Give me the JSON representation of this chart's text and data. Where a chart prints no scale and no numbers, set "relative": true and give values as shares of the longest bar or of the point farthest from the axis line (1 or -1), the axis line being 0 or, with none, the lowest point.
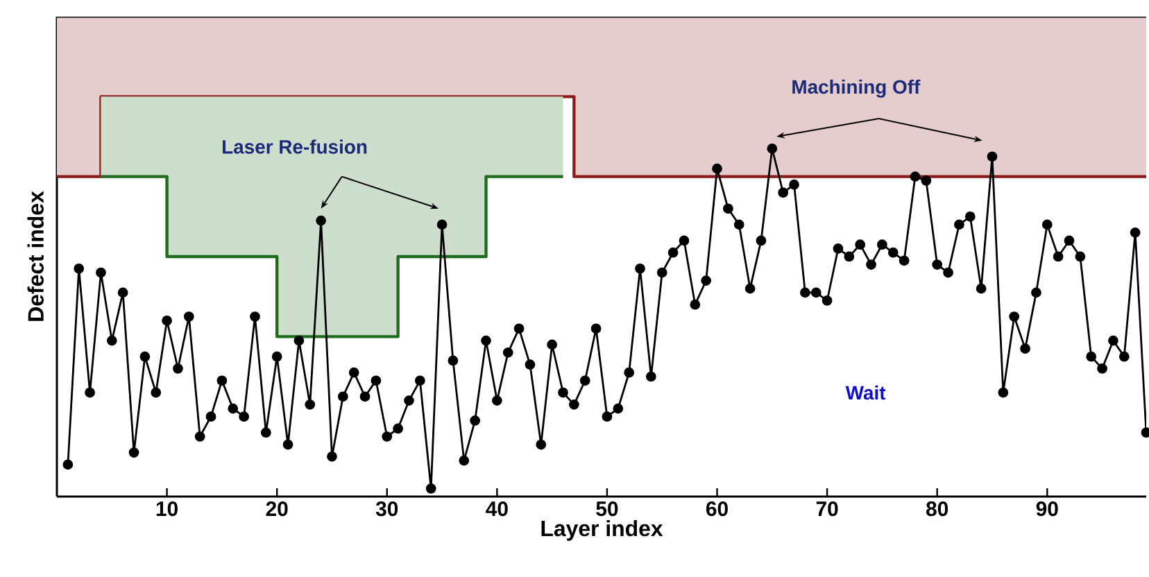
{
  "chart_data": {
    "type": "line",
    "relative": true,
    "xlabel": "Layer index",
    "ylabel": "Defect index",
    "xlim": [
      0,
      99
    ],
    "xticks": [
      10,
      20,
      30,
      40,
      50,
      60,
      70,
      80,
      90
    ],
    "annotations": [
      "Laser Re-fusion",
      "Machining Off",
      "Wait"
    ],
    "series": [
      {
        "type": "step",
        "color": "#8b1a1a",
        "x": [
          0,
          4,
          47,
          99
        ],
        "values": [
          0.8,
          1.0,
          0.8,
          0.8
        ],
        "lower": [
          0.8,
          1.0,
          0.8,
          0.8
        ],
        "upper": [
          1.2,
          1.2,
          1.2,
          1.2
        ]
      },
      {
        "type": "step",
        "color": "#1e6b1e",
        "x": [
          4,
          10,
          20,
          31,
          39,
          46
        ],
        "values": [
          0.8,
          0.6,
          0.4,
          0.6,
          0.8,
          0.8
        ],
        "lower": [
          0.8,
          0.6,
          0.4,
          0.6,
          0.8,
          0.8
        ],
        "upper": [
          1.0,
          1.0,
          1.0,
          1.0,
          1.0,
          1.0
        ]
      },
      {
        "color": "#000000",
        "marker": "circle",
        "x": [
          1,
          2,
          3,
          4,
          5,
          6,
          7,
          8,
          9,
          10,
          11,
          12,
          13,
          14,
          15,
          16,
          17,
          18,
          19,
          20,
          21,
          22,
          23,
          24,
          25,
          26,
          27,
          28,
          29,
          30,
          31,
          32,
          33,
          34,
          35,
          36,
          37,
          38,
          39,
          40,
          41,
          42,
          43,
          44,
          45,
          46,
          47,
          48,
          49,
          50,
          51,
          52,
          53,
          54,
          55,
          56,
          57,
          58,
          59,
          60,
          61,
          62,
          63,
          64,
          65,
          66,
          67,
          68,
          69,
          70,
          71,
          72,
          73,
          74,
          75,
          76,
          77,
          78,
          79,
          80,
          81,
          82,
          83,
          84,
          85,
          86,
          87,
          88,
          89,
          90,
          91,
          92,
          93,
          94,
          95,
          96,
          97,
          98,
          99
        ],
        "values": [
          0.08,
          0.57,
          0.26,
          0.56,
          0.39,
          0.51,
          0.11,
          0.35,
          0.26,
          0.44,
          0.32,
          0.45,
          0.15,
          0.2,
          0.29,
          0.22,
          0.2,
          0.45,
          0.16,
          0.35,
          0.13,
          0.39,
          0.23,
          0.69,
          0.1,
          0.25,
          0.31,
          0.25,
          0.29,
          0.15,
          0.17,
          0.24,
          0.29,
          0.02,
          0.68,
          0.34,
          0.09,
          0.19,
          0.39,
          0.24,
          0.36,
          0.42,
          0.33,
          0.13,
          0.38,
          0.26,
          0.23,
          0.29,
          0.42,
          0.2,
          0.22,
          0.31,
          0.57,
          0.3,
          0.56,
          0.61,
          0.64,
          0.48,
          0.54,
          0.82,
          0.72,
          0.68,
          0.52,
          0.64,
          0.87,
          0.76,
          0.78,
          0.51,
          0.51,
          0.49,
          0.62,
          0.6,
          0.63,
          0.58,
          0.63,
          0.61,
          0.59,
          0.8,
          0.79,
          0.58,
          0.56,
          0.68,
          0.7,
          0.52,
          0.85,
          0.26,
          0.45,
          0.37,
          0.51,
          0.68,
          0.6,
          0.64,
          0.6,
          0.35,
          0.32,
          0.39,
          0.35,
          0.66,
          0.16
        ]
      }
    ]
  }
}
